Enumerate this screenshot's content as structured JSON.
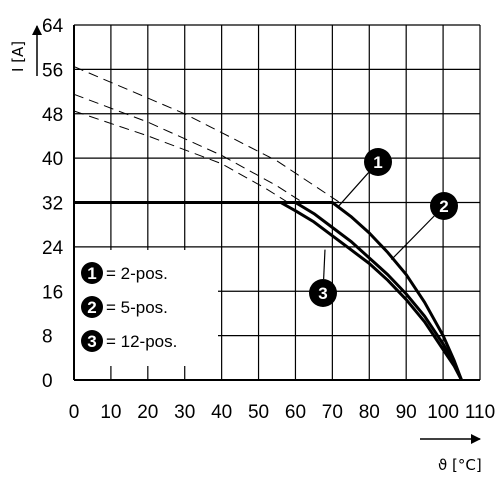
{
  "chart_data": {
    "type": "line",
    "xlabel": "ϑ [°C]",
    "ylabel": "I [A]",
    "xlim": [
      0,
      110
    ],
    "ylim": [
      0,
      64
    ],
    "x_ticks": [
      "0",
      "10",
      "20",
      "30",
      "40",
      "50",
      "60",
      "70",
      "80",
      "90",
      "100",
      "110"
    ],
    "y_ticks": [
      "0",
      "8",
      "16",
      "24",
      "32",
      "40",
      "48",
      "56",
      "64"
    ],
    "grid": true,
    "legend_position": "lower-left",
    "legend": [
      {
        "marker": "1",
        "label": "= 2-pos."
      },
      {
        "marker": "2",
        "label": "= 5-pos."
      },
      {
        "marker": "3",
        "label": "= 12-pos."
      }
    ],
    "series": [
      {
        "marker": "1",
        "derating_solid": [
          [
            0,
            32
          ],
          [
            70,
            32
          ],
          [
            75,
            29.5
          ],
          [
            80,
            26.5
          ],
          [
            85,
            23
          ],
          [
            90,
            19
          ],
          [
            95,
            14
          ],
          [
            100,
            8
          ],
          [
            103,
            3.5
          ],
          [
            105,
            0
          ]
        ],
        "dashed": [
          [
            0,
            56.5
          ],
          [
            30,
            48
          ],
          [
            55,
            39.5
          ],
          [
            72,
            32
          ]
        ]
      },
      {
        "marker": "2",
        "derating_solid": [
          [
            0,
            32
          ],
          [
            60,
            32
          ],
          [
            65,
            30
          ],
          [
            70,
            27.5
          ],
          [
            75,
            25
          ],
          [
            80,
            22
          ],
          [
            85,
            19
          ],
          [
            90,
            15.5
          ],
          [
            95,
            11.5
          ],
          [
            100,
            6.5
          ],
          [
            103,
            3
          ],
          [
            105,
            0
          ]
        ],
        "dashed": [
          [
            0,
            51.5
          ],
          [
            20,
            46.5
          ],
          [
            40,
            40.5
          ],
          [
            55,
            35
          ],
          [
            62,
            32
          ]
        ]
      },
      {
        "marker": "3",
        "derating_solid": [
          [
            0,
            32
          ],
          [
            56,
            32
          ],
          [
            60,
            30.5
          ],
          [
            65,
            28.5
          ],
          [
            70,
            26
          ],
          [
            75,
            23.5
          ],
          [
            80,
            21
          ],
          [
            85,
            18
          ],
          [
            90,
            14.5
          ],
          [
            95,
            10.5
          ],
          [
            100,
            5.5
          ],
          [
            103,
            2.5
          ],
          [
            105,
            0
          ]
        ],
        "dashed": [
          [
            0,
            48.5
          ],
          [
            20,
            44
          ],
          [
            40,
            39
          ],
          [
            52,
            34.5
          ],
          [
            58,
            32
          ]
        ]
      }
    ]
  }
}
